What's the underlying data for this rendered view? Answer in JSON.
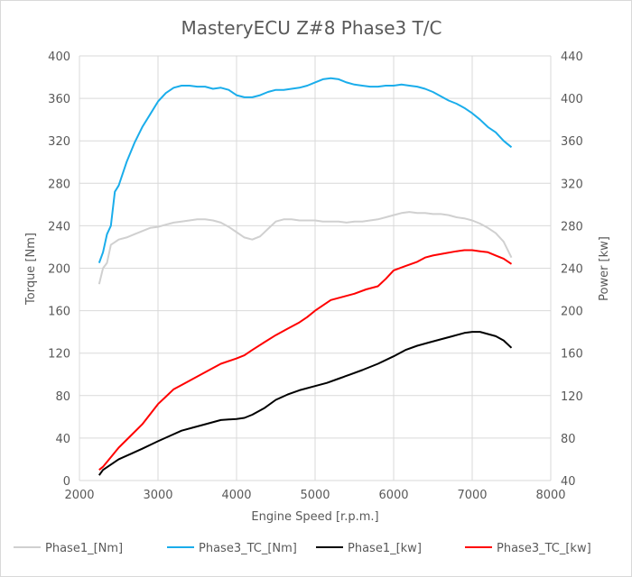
{
  "chart_data": {
    "type": "line",
    "title": "MasteryECU Z#8 Phase3 T/C",
    "xlabel": "Engine Speed [r.p.m.]",
    "ylabel": "Torque [Nm]",
    "y2label": "Power [kw]",
    "xlim": [
      2000,
      8000
    ],
    "ylim": [
      0,
      400
    ],
    "y2lim": [
      40,
      440
    ],
    "xticks": [
      "2000",
      "3000",
      "4000",
      "5000",
      "6000",
      "7000",
      "8000"
    ],
    "yticks": [
      "0",
      "40",
      "80",
      "120",
      "160",
      "200",
      "240",
      "280",
      "320",
      "360",
      "400"
    ],
    "y2ticks": [
      "40",
      "80",
      "120",
      "160",
      "200",
      "240",
      "280",
      "320",
      "360",
      "400",
      "440"
    ],
    "grid": true,
    "legend_position": "bottom",
    "series": [
      {
        "name": "Phase1_[Nm]",
        "axis": "left",
        "color": "#d0d0d0",
        "x": [
          2250,
          2300,
          2350,
          2400,
          2500,
          2600,
          2700,
          2800,
          2900,
          3000,
          3100,
          3200,
          3300,
          3400,
          3500,
          3600,
          3700,
          3800,
          3900,
          4000,
          4100,
          4200,
          4300,
          4400,
          4500,
          4600,
          4700,
          4800,
          4900,
          5000,
          5100,
          5200,
          5300,
          5400,
          5500,
          5600,
          5700,
          5800,
          5900,
          6000,
          6100,
          6200,
          6300,
          6400,
          6500,
          6600,
          6700,
          6800,
          6900,
          7000,
          7100,
          7200,
          7300,
          7400,
          7500
        ],
        "y": [
          185,
          200,
          205,
          222,
          227,
          229,
          232,
          235,
          238,
          239,
          241,
          243,
          244,
          245,
          246,
          246,
          245,
          243,
          239,
          234,
          229,
          227,
          230,
          237,
          244,
          246,
          246,
          245,
          245,
          245,
          244,
          244,
          244,
          243,
          244,
          244,
          245,
          246,
          248,
          250,
          252,
          253,
          252,
          252,
          251,
          251,
          250,
          248,
          247,
          245,
          242,
          238,
          233,
          225,
          210
        ]
      },
      {
        "name": "Phase3_TC_[Nm]",
        "axis": "left",
        "color": "#1aadeb",
        "x": [
          2250,
          2300,
          2350,
          2400,
          2450,
          2500,
          2600,
          2700,
          2800,
          2900,
          3000,
          3100,
          3200,
          3300,
          3400,
          3500,
          3600,
          3700,
          3800,
          3900,
          4000,
          4100,
          4200,
          4300,
          4400,
          4500,
          4600,
          4700,
          4800,
          4900,
          5000,
          5100,
          5200,
          5300,
          5400,
          5500,
          5600,
          5700,
          5800,
          5900,
          6000,
          6100,
          6200,
          6300,
          6400,
          6500,
          6600,
          6700,
          6800,
          6900,
          7000,
          7100,
          7200,
          7300,
          7400,
          7500
        ],
        "y": [
          205,
          215,
          232,
          240,
          272,
          278,
          300,
          318,
          333,
          345,
          357,
          365,
          370,
          372,
          372,
          371,
          371,
          369,
          370,
          368,
          363,
          361,
          361,
          363,
          366,
          368,
          368,
          369,
          370,
          372,
          375,
          378,
          379,
          378,
          375,
          373,
          372,
          371,
          371,
          372,
          372,
          373,
          372,
          371,
          369,
          366,
          362,
          358,
          355,
          351,
          346,
          340,
          333,
          328,
          320,
          314
        ]
      },
      {
        "name": "Phase1_[kw]",
        "axis": "right",
        "color": "#000000",
        "x": [
          2250,
          2300,
          2400,
          2500,
          2650,
          2800,
          3000,
          3150,
          3300,
          3450,
          3600,
          3800,
          4000,
          4100,
          4200,
          4350,
          4500,
          4650,
          4800,
          5000,
          5150,
          5300,
          5450,
          5600,
          5800,
          6000,
          6150,
          6300,
          6450,
          6600,
          6750,
          6900,
          7000,
          7100,
          7200,
          7300,
          7400,
          7500
        ],
        "y": [
          45,
          50,
          55,
          60,
          65,
          70,
          77,
          82,
          87,
          90,
          93,
          97,
          98,
          99,
          102,
          108,
          116,
          121,
          125,
          129,
          132,
          136,
          140,
          144,
          150,
          157,
          163,
          167,
          170,
          173,
          176,
          179,
          180,
          180,
          178,
          176,
          172,
          165
        ]
      },
      {
        "name": "Phase3_TC_[kw]",
        "axis": "right",
        "color": "#ff0000",
        "x": [
          2250,
          2300,
          2400,
          2500,
          2650,
          2800,
          3000,
          3100,
          3200,
          3350,
          3500,
          3650,
          3800,
          4000,
          4100,
          4200,
          4350,
          4500,
          4650,
          4800,
          4900,
          5000,
          5100,
          5200,
          5350,
          5500,
          5650,
          5800,
          5900,
          6000,
          6150,
          6300,
          6400,
          6500,
          6650,
          6800,
          6900,
          7000,
          7100,
          7200,
          7300,
          7400,
          7500
        ],
        "y": [
          50,
          53,
          62,
          71,
          82,
          93,
          112,
          119,
          126,
          132,
          138,
          144,
          150,
          155,
          158,
          163,
          170,
          177,
          183,
          189,
          194,
          200,
          205,
          210,
          213,
          216,
          220,
          223,
          230,
          238,
          242,
          246,
          250,
          252,
          254,
          256,
          257,
          257,
          256,
          255,
          252,
          249,
          244
        ]
      }
    ]
  }
}
